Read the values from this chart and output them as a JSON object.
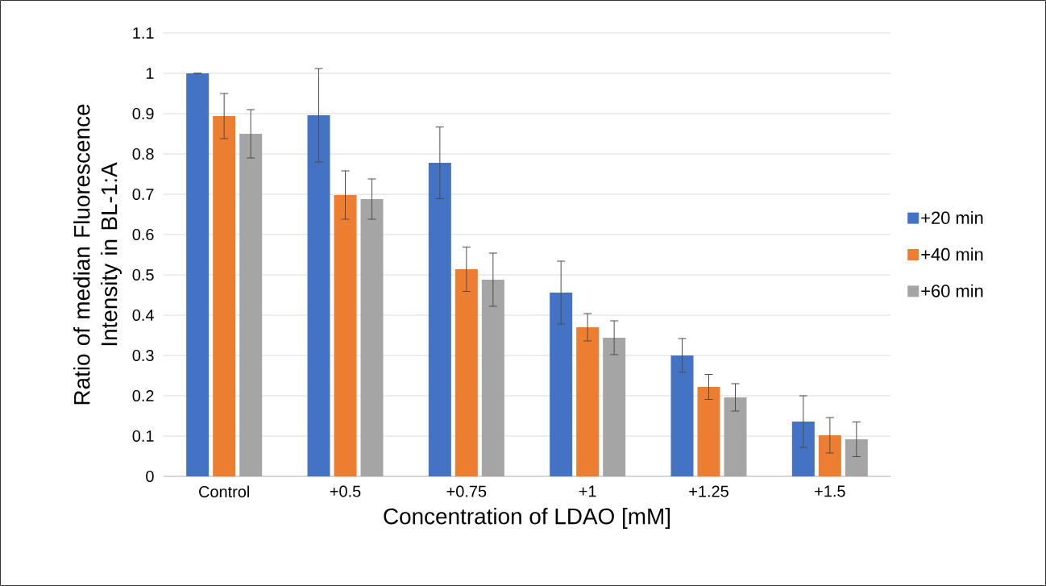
{
  "chart_data": {
    "type": "bar",
    "xlabel": "Concentration of LDAO [mM]",
    "ylabel": "Ratio of median Fluorescence Intensity in BL-1:A",
    "categories": [
      "Control",
      "+0.5",
      "+0.75",
      "+1",
      "+1.25",
      "+1.5"
    ],
    "series": [
      {
        "name": "+20 min",
        "color": "#4472c4",
        "values": [
          1.0,
          0.896,
          0.778,
          0.456,
          0.3,
          0.136
        ],
        "errors": [
          0,
          0.116,
          0.089,
          0.078,
          0.042,
          0.064
        ]
      },
      {
        "name": "+40 min",
        "color": "#ed7d31",
        "values": [
          0.894,
          0.698,
          0.514,
          0.37,
          0.222,
          0.102
        ],
        "errors": [
          0.056,
          0.06,
          0.055,
          0.034,
          0.031,
          0.044
        ]
      },
      {
        "name": "+60 min",
        "color": "#a5a5a5",
        "values": [
          0.85,
          0.688,
          0.488,
          0.344,
          0.196,
          0.092
        ],
        "errors": [
          0.06,
          0.05,
          0.066,
          0.042,
          0.034,
          0.043
        ]
      }
    ],
    "ylim": [
      0,
      1.1
    ],
    "yticks": [
      0,
      0.1,
      0.2,
      0.3,
      0.4,
      0.5,
      0.6,
      0.7,
      0.8,
      0.9,
      1,
      1.1
    ],
    "grid": "y",
    "legend": "right"
  }
}
